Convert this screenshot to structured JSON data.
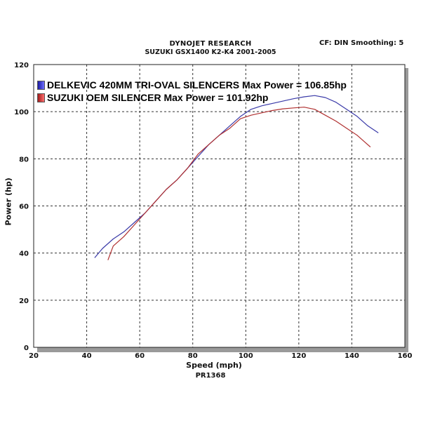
{
  "header": {
    "title": "DYNOJET RESEARCH",
    "subtitle": "SUZUKI GSX1400 K2-K4 2001-2005",
    "settings": "CF: DIN  Smoothing: 5"
  },
  "footer": {
    "run_id": "PR1368"
  },
  "chart_data": {
    "type": "line",
    "xlabel": "Speed (mph)",
    "ylabel": "Power (hp)",
    "xlim": [
      20,
      160
    ],
    "ylim": [
      0,
      120
    ],
    "xticks": [
      20,
      40,
      60,
      80,
      100,
      120,
      140,
      160
    ],
    "yticks": [
      0,
      20,
      40,
      60,
      80,
      100,
      120
    ],
    "grid": true,
    "legend_position": "top-left",
    "series": [
      {
        "name": "DELKEVIC 420MM TRI-OVAL SILENCERS Max Power = 106.85hp",
        "color": "#3a3aa8",
        "x": [
          43,
          46,
          50,
          54,
          58,
          62,
          66,
          70,
          74,
          78,
          82,
          86,
          90,
          94,
          98,
          102,
          106,
          110,
          114,
          118,
          122,
          126,
          130,
          134,
          138,
          142,
          146,
          150
        ],
        "y": [
          38,
          42,
          46,
          49,
          53,
          57,
          62,
          67,
          71,
          76,
          81,
          86,
          90,
          94,
          98,
          101,
          102.5,
          103.5,
          104.5,
          105.5,
          106.3,
          106.85,
          106,
          104,
          101,
          98,
          94,
          91
        ]
      },
      {
        "name": "SUZUKI OEM SILENCER Max Power = 101.92hp",
        "color": "#b03030",
        "x": [
          48,
          50,
          54,
          58,
          62,
          66,
          70,
          74,
          78,
          82,
          86,
          90,
          94,
          98,
          102,
          106,
          110,
          114,
          118,
          122,
          126,
          130,
          134,
          138,
          142,
          145,
          147
        ],
        "y": [
          37,
          43,
          47,
          52,
          57,
          62,
          67,
          71,
          76,
          82,
          86,
          90,
          93,
          97,
          98.5,
          99.5,
          100.5,
          101.2,
          101.6,
          101.92,
          101,
          98.5,
          96,
          93,
          90,
          87,
          85
        ]
      }
    ]
  }
}
